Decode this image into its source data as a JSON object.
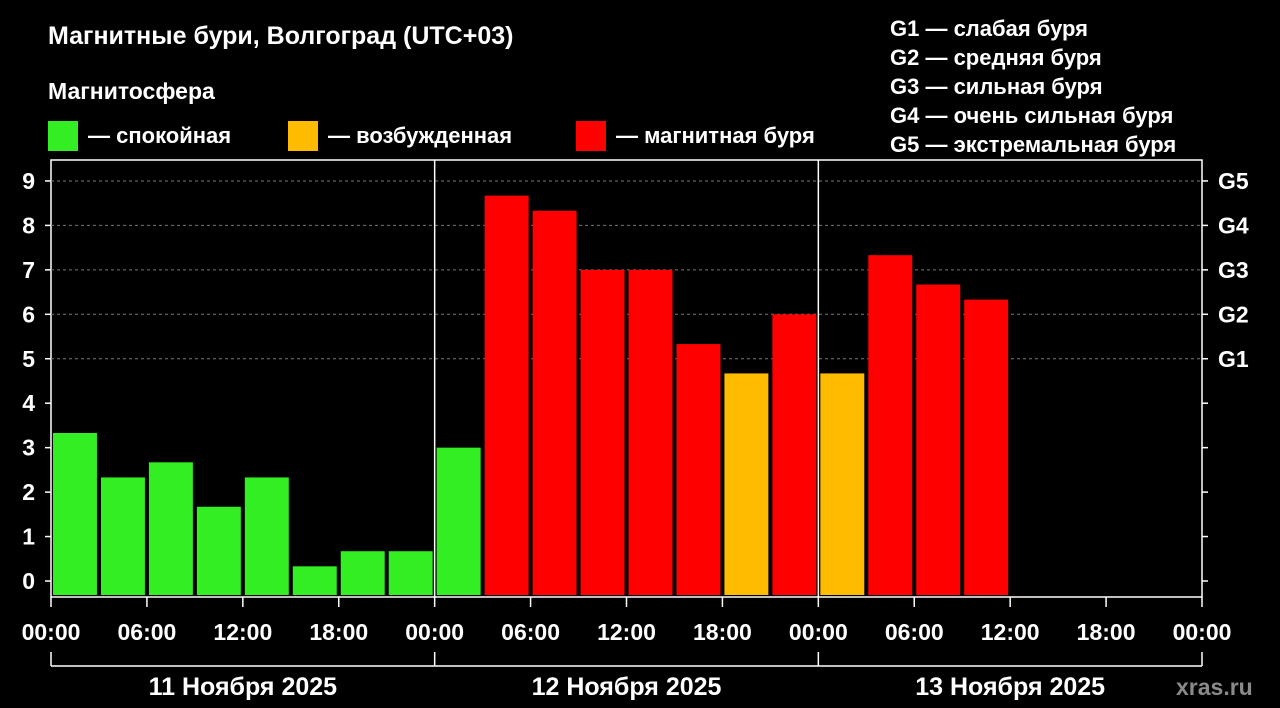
{
  "header": {
    "title": "Магнитные бури, Волгоград (UTC+03)",
    "magnetosphere_label": "Магнитосфера"
  },
  "legend": {
    "items": [
      {
        "label": "— спокойная",
        "color": "#33ee22"
      },
      {
        "label": "— возбужденная",
        "color": "#ffbb00"
      },
      {
        "label": "— магнитная буря",
        "color": "#ff0000"
      }
    ]
  },
  "g_legend": [
    "G1 — слабая буря",
    "G2 — средняя буря",
    "G3 — сильная буря",
    "G4 — очень сильная буря",
    "G5 — экстремальная буря"
  ],
  "watermark": "xras.ru",
  "chart_data": {
    "type": "bar",
    "ylim": [
      0,
      9
    ],
    "yticks": [
      "0",
      "1",
      "2",
      "3",
      "4",
      "5",
      "6",
      "7",
      "8",
      "9"
    ],
    "g_ticks": [
      {
        "label": "G1",
        "value": 5
      },
      {
        "label": "G2",
        "value": 6
      },
      {
        "label": "G3",
        "value": 7
      },
      {
        "label": "G4",
        "value": 8
      },
      {
        "label": "G5",
        "value": 9
      }
    ],
    "x_tick_labels": [
      "00:00",
      "06:00",
      "12:00",
      "18:00",
      "00:00",
      "06:00",
      "12:00",
      "18:00",
      "00:00",
      "06:00",
      "12:00",
      "18:00",
      "00:00"
    ],
    "days": [
      "11 Ноября 2025",
      "12 Ноября 2025",
      "13 Ноября 2025"
    ],
    "interval_hours": 3,
    "series": [
      {
        "values": [
          3.33,
          2.33,
          2.67,
          1.67,
          2.33,
          0.33,
          0.67,
          0.67,
          3.0,
          8.67,
          8.33,
          7.0,
          7.0,
          5.33,
          4.67,
          6.0,
          4.67,
          7.33,
          6.67,
          6.33
        ],
        "colors": [
          "#33ee22",
          "#33ee22",
          "#33ee22",
          "#33ee22",
          "#33ee22",
          "#33ee22",
          "#33ee22",
          "#33ee22",
          "#33ee22",
          "#ff0000",
          "#ff0000",
          "#ff0000",
          "#ff0000",
          "#ff0000",
          "#ffbb00",
          "#ff0000",
          "#ffbb00",
          "#ff0000",
          "#ff0000",
          "#ff0000"
        ]
      }
    ],
    "grid": true
  }
}
